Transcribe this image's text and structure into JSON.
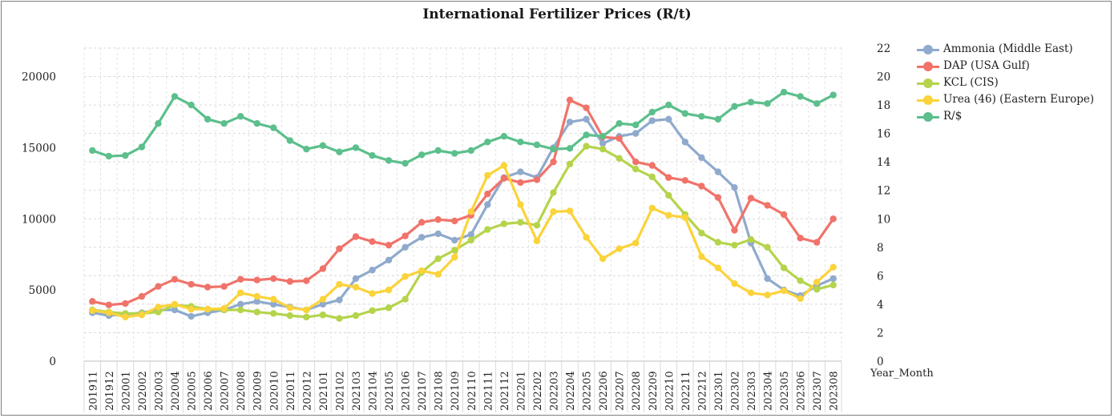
{
  "chart_data": {
    "type": "line",
    "title": "International Fertilizer Prices (R/t)",
    "xlabel": "Year_Month",
    "ylabel": "",
    "ylim": [
      0,
      22000
    ],
    "y_ticks": [
      "0",
      "5000",
      "10000",
      "15000",
      "20000"
    ],
    "y2lim": [
      0,
      22
    ],
    "y2_ticks": [
      "0",
      "2",
      "4",
      "6",
      "8",
      "10",
      "12",
      "14",
      "16",
      "18",
      "20",
      "22"
    ],
    "grid": true,
    "legend_position": "right",
    "categories": [
      "201911",
      "201912",
      "202001",
      "202002",
      "202003",
      "202004",
      "202005",
      "202006",
      "202007",
      "202008",
      "202009",
      "202010",
      "202011",
      "202012",
      "202101",
      "202102",
      "202103",
      "202104",
      "202105",
      "202106",
      "202107",
      "202108",
      "202109",
      "202110",
      "202111",
      "202112",
      "202201",
      "202202",
      "202203",
      "202204",
      "202205",
      "202206",
      "202207",
      "202208",
      "202209",
      "202210",
      "202211",
      "202212",
      "202301",
      "202302",
      "202303",
      "202304",
      "202305",
      "202306",
      "202307",
      "202308"
    ],
    "series": [
      {
        "name": "Ammonia (Middle East)",
        "axis": "left",
        "color": "#8faacc",
        "values": [
          3400,
          3200,
          3300,
          3400,
          3600,
          3600,
          3150,
          3400,
          3600,
          4000,
          4200,
          4000,
          3800,
          3600,
          4000,
          4300,
          5800,
          6400,
          7100,
          8000,
          8700,
          8950,
          8500,
          8900,
          11000,
          12900,
          13300,
          12900,
          15000,
          16800,
          17000,
          15300,
          15800,
          16000,
          16900,
          17000,
          15400,
          14300,
          13300,
          12200,
          8300,
          5800,
          5000,
          4600,
          5300,
          5800
        ]
      },
      {
        "name": "DAP (USA Gulf)",
        "axis": "left",
        "color": "#f0736a",
        "values": [
          4200,
          3950,
          4050,
          4550,
          5250,
          5750,
          5400,
          5200,
          5250,
          5750,
          5700,
          5800,
          5600,
          5650,
          6500,
          7900,
          8750,
          8400,
          8150,
          8800,
          9750,
          9950,
          9850,
          10250,
          11750,
          12850,
          12550,
          12750,
          14000,
          18350,
          17800,
          15750,
          15650,
          14000,
          13750,
          12900,
          12700,
          12300,
          11500,
          9200,
          11450,
          10950,
          10300,
          8650,
          8350,
          10000
        ]
      },
      {
        "name": "KCL (CIS)",
        "axis": "left",
        "color": "#b5d44c",
        "values": [
          3600,
          3450,
          3350,
          3350,
          3450,
          3950,
          3850,
          3650,
          3600,
          3600,
          3450,
          3350,
          3200,
          3100,
          3250,
          3000,
          3200,
          3550,
          3750,
          4350,
          6250,
          7200,
          7800,
          8500,
          9250,
          9650,
          9750,
          9550,
          11850,
          13850,
          15100,
          14900,
          14250,
          13500,
          12950,
          11650,
          10300,
          9000,
          8350,
          8150,
          8550,
          8000,
          6550,
          5650,
          5050,
          5350
        ]
      },
      {
        "name": "Urea (46) (Eastern Europe)",
        "axis": "left",
        "color": "#fbd33a",
        "values": [
          3550,
          3400,
          3100,
          3250,
          3800,
          4000,
          3650,
          3650,
          3700,
          4800,
          4550,
          4350,
          3750,
          3600,
          4350,
          5400,
          5200,
          4750,
          5000,
          5950,
          6350,
          6100,
          7300,
          10500,
          13050,
          13750,
          11000,
          8450,
          10500,
          10550,
          8700,
          7200,
          7900,
          8300,
          10750,
          10250,
          10100,
          7350,
          6550,
          5450,
          4800,
          4650,
          4950,
          4400,
          5550,
          6600
        ]
      },
      {
        "name": "R/$",
        "axis": "right",
        "color": "#5cbf8c",
        "values": [
          14.8,
          14.4,
          14.45,
          15.05,
          16.7,
          18.6,
          18.0,
          17.0,
          16.7,
          17.2,
          16.7,
          16.4,
          15.5,
          14.9,
          15.15,
          14.7,
          15.0,
          14.45,
          14.1,
          13.9,
          14.5,
          14.8,
          14.6,
          14.8,
          15.4,
          15.8,
          15.4,
          15.2,
          14.9,
          14.95,
          15.9,
          15.8,
          16.7,
          16.6,
          17.5,
          18.0,
          17.4,
          17.2,
          17.0,
          17.9,
          18.2,
          18.1,
          18.9,
          18.6,
          18.1,
          18.7
        ]
      }
    ]
  }
}
